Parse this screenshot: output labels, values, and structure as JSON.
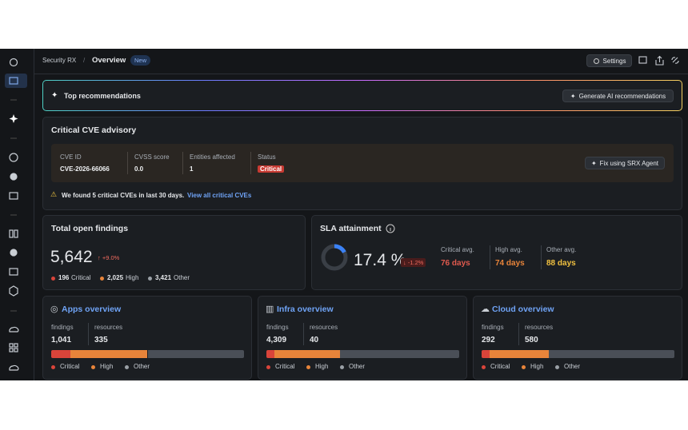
{
  "breadcrumb": {
    "parent": "Security RX",
    "separator": "/",
    "current": "Overview",
    "badge": "New"
  },
  "toolbar": {
    "settings": "Settings"
  },
  "recommendations": {
    "title": "Top recommendations",
    "button": "Generate AI recommendations"
  },
  "advisory": {
    "title": "Critical CVE advisory",
    "columns": [
      {
        "label": "CVE ID",
        "value": "CVE-2026-66066"
      },
      {
        "label": "CVSS score",
        "value": "0.0"
      },
      {
        "label": "Entities affected",
        "value": "1"
      },
      {
        "label": "Status",
        "value": "Critical"
      }
    ],
    "button": "Fix using SRX Agent",
    "notice": "We found 5 critical CVEs in last 30 days.",
    "link": "View all critical CVEs"
  },
  "findings": {
    "title": "Total open findings",
    "total": "5,642",
    "change": "↑ +9.0%",
    "breakdown": [
      {
        "count": "196",
        "label": "Critical"
      },
      {
        "count": "2,025",
        "label": "High"
      },
      {
        "count": "3,421",
        "label": "Other"
      }
    ]
  },
  "sla": {
    "title": "SLA attainment",
    "value": 17.4,
    "unit": "%",
    "change": "↓ -1.2%",
    "averages": [
      {
        "label": "Critical avg.",
        "value": "76 days"
      },
      {
        "label": "High avg.",
        "value": "74 days"
      },
      {
        "label": "Other avg.",
        "value": "88 days"
      }
    ]
  },
  "cards": [
    {
      "title": "Apps overview",
      "stats": [
        {
          "label": "findings",
          "value": "1,041"
        },
        {
          "label": "resources",
          "value": "335"
        }
      ],
      "bar": [
        10,
        40,
        50
      ]
    },
    {
      "title": "Infra overview",
      "stats": [
        {
          "label": "findings",
          "value": "4,309"
        },
        {
          "label": "resources",
          "value": "40"
        }
      ],
      "bar": [
        4,
        34,
        62
      ]
    },
    {
      "title": "Cloud overview",
      "stats": [
        {
          "label": "findings",
          "value": "292"
        },
        {
          "label": "resources",
          "value": "580"
        }
      ],
      "bar": [
        4,
        31,
        65
      ]
    }
  ],
  "legend": [
    "Critical",
    "High",
    "Other"
  ]
}
